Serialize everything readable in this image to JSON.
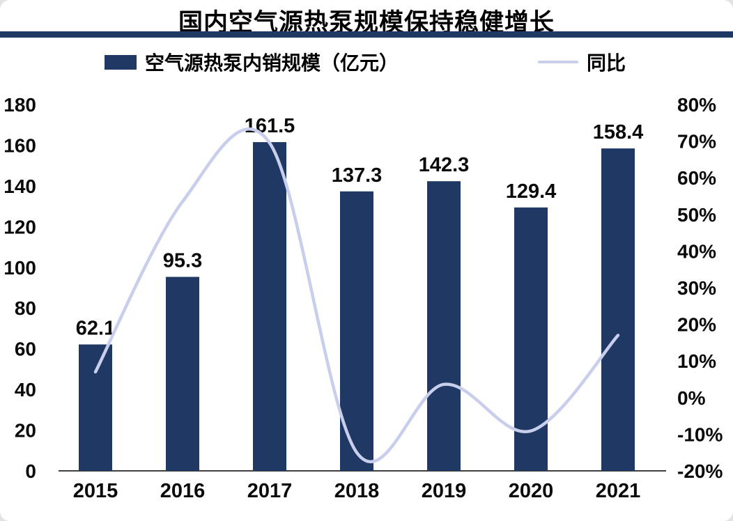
{
  "chart_data": {
    "type": "combo",
    "title": "国内空气源热泵规模保持稳健增长",
    "categories": [
      "2015",
      "2016",
      "2017",
      "2018",
      "2019",
      "2020",
      "2021"
    ],
    "series": [
      {
        "name": "空气源热泵内销规模（亿元）",
        "type": "bar",
        "axis": "left",
        "values": [
          62.1,
          95.3,
          161.5,
          137.3,
          142.3,
          129.4,
          158.4
        ],
        "labels": [
          "62.1",
          "95.3",
          "161.5",
          "137.3",
          "142.3",
          "129.4",
          "158.4"
        ],
        "color": "#1F3864"
      },
      {
        "name": "同比",
        "type": "line",
        "axis": "right",
        "unit": "%",
        "smooth": true,
        "values": [
          7,
          53.5,
          69.5,
          -15,
          3.6,
          -9.1,
          17
        ],
        "color": "#C8CEEC"
      }
    ],
    "left_axis": {
      "min": 0,
      "max": 180,
      "step": 20,
      "tick_labels": [
        "180",
        "160",
        "140",
        "120",
        "100",
        "80",
        "60",
        "40",
        "20",
        "0"
      ]
    },
    "right_axis": {
      "min": -20,
      "max": 80,
      "step": 10,
      "tick_labels": [
        "80%",
        "70%",
        "60%",
        "50%",
        "40%",
        "30%",
        "20%",
        "10%",
        "0%",
        "-10%",
        "-20%"
      ]
    },
    "grid": false,
    "legend_position": "top"
  },
  "colors": {
    "bar": "#1F3864",
    "line": "#C8CEEC",
    "divider": "#1F3864",
    "text": "#0A0A0A",
    "axis_line": "#404040",
    "background": "#FFFFFF"
  }
}
